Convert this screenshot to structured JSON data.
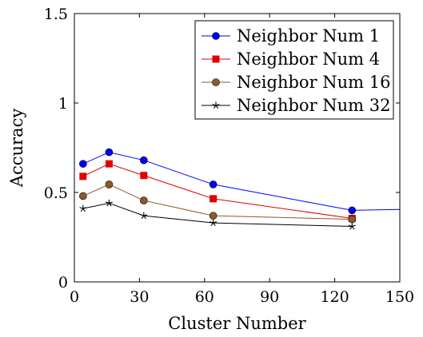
{
  "chart_data": {
    "type": "line",
    "xlabel": "Cluster Number",
    "ylabel": "Accuracy",
    "xlim": [
      0,
      150
    ],
    "ylim": [
      0,
      1.5
    ],
    "xticks": [
      0,
      30,
      60,
      90,
      120,
      150
    ],
    "yticks": [
      0,
      0.5,
      1,
      1.5
    ],
    "xtick_labels": [
      "0",
      "30",
      "60",
      "90",
      "120",
      "150"
    ],
    "ytick_labels": [
      "0",
      "0.5",
      "1",
      "1.5"
    ],
    "grid": false,
    "legend_position": "top-right",
    "series": [
      {
        "name": "Neighbor Num 1",
        "color": "#0000ff",
        "marker": "circle",
        "points": [
          [
            4,
            0.66
          ],
          [
            16,
            0.725
          ],
          [
            32,
            0.68
          ],
          [
            64,
            0.545
          ],
          [
            128,
            0.4
          ],
          [
            150,
            0.405
          ]
        ]
      },
      {
        "name": "Neighbor Num 4",
        "color": "#e00000",
        "marker": "square",
        "points": [
          [
            4,
            0.59
          ],
          [
            16,
            0.66
          ],
          [
            32,
            0.595
          ],
          [
            64,
            0.465
          ],
          [
            128,
            0.355
          ]
        ]
      },
      {
        "name": "Neighbor Num 16",
        "color": "#8c5a2e",
        "marker": "circle",
        "points": [
          [
            4,
            0.48
          ],
          [
            16,
            0.545
          ],
          [
            32,
            0.455
          ],
          [
            64,
            0.37
          ],
          [
            128,
            0.35
          ]
        ]
      },
      {
        "name": "Neighbor Num 32",
        "color": "#000000",
        "marker": "star",
        "points": [
          [
            4,
            0.41
          ],
          [
            16,
            0.44
          ],
          [
            32,
            0.37
          ],
          [
            64,
            0.33
          ],
          [
            128,
            0.31
          ]
        ]
      }
    ]
  }
}
